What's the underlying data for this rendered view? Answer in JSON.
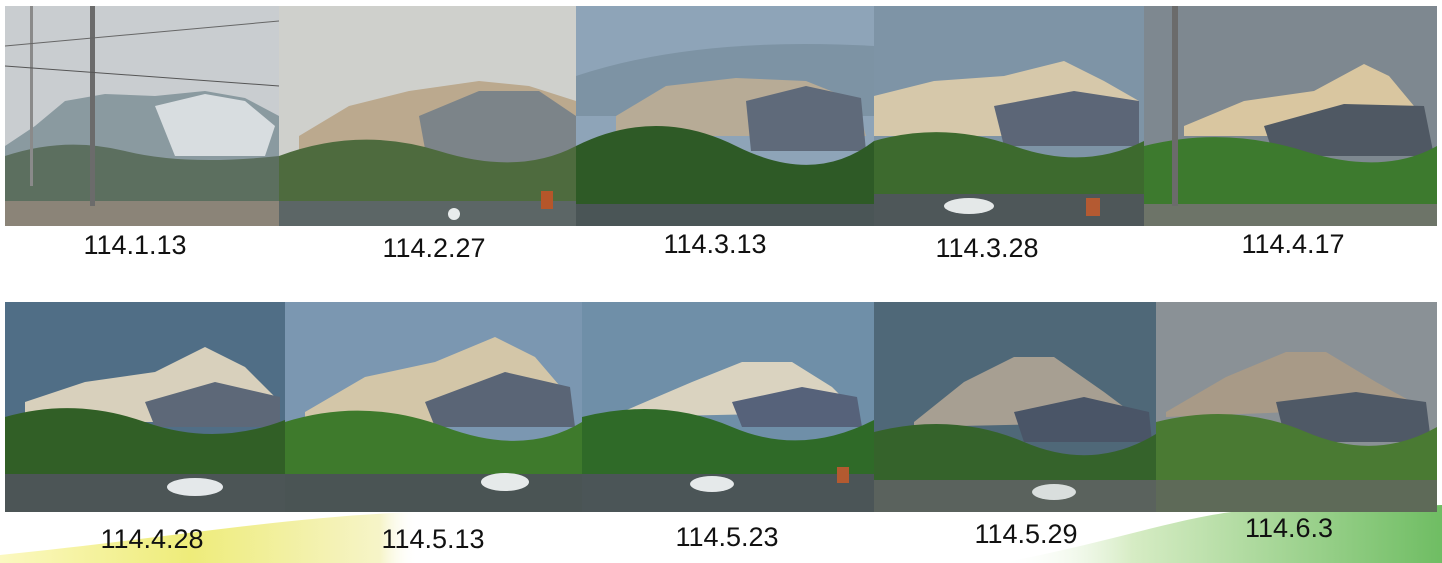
{
  "photos": [
    {
      "date": "114.1.13"
    },
    {
      "date": "114.2.27"
    },
    {
      "date": "114.3.13"
    },
    {
      "date": "114.3.28"
    },
    {
      "date": "114.4.17"
    },
    {
      "date": "114.4.28"
    },
    {
      "date": "114.5.13"
    },
    {
      "date": "114.5.23"
    },
    {
      "date": "114.5.29"
    },
    {
      "date": "114.6.3"
    }
  ],
  "colors": {
    "band_left": "#f0ef7a",
    "band_right": "#7fc26a"
  }
}
